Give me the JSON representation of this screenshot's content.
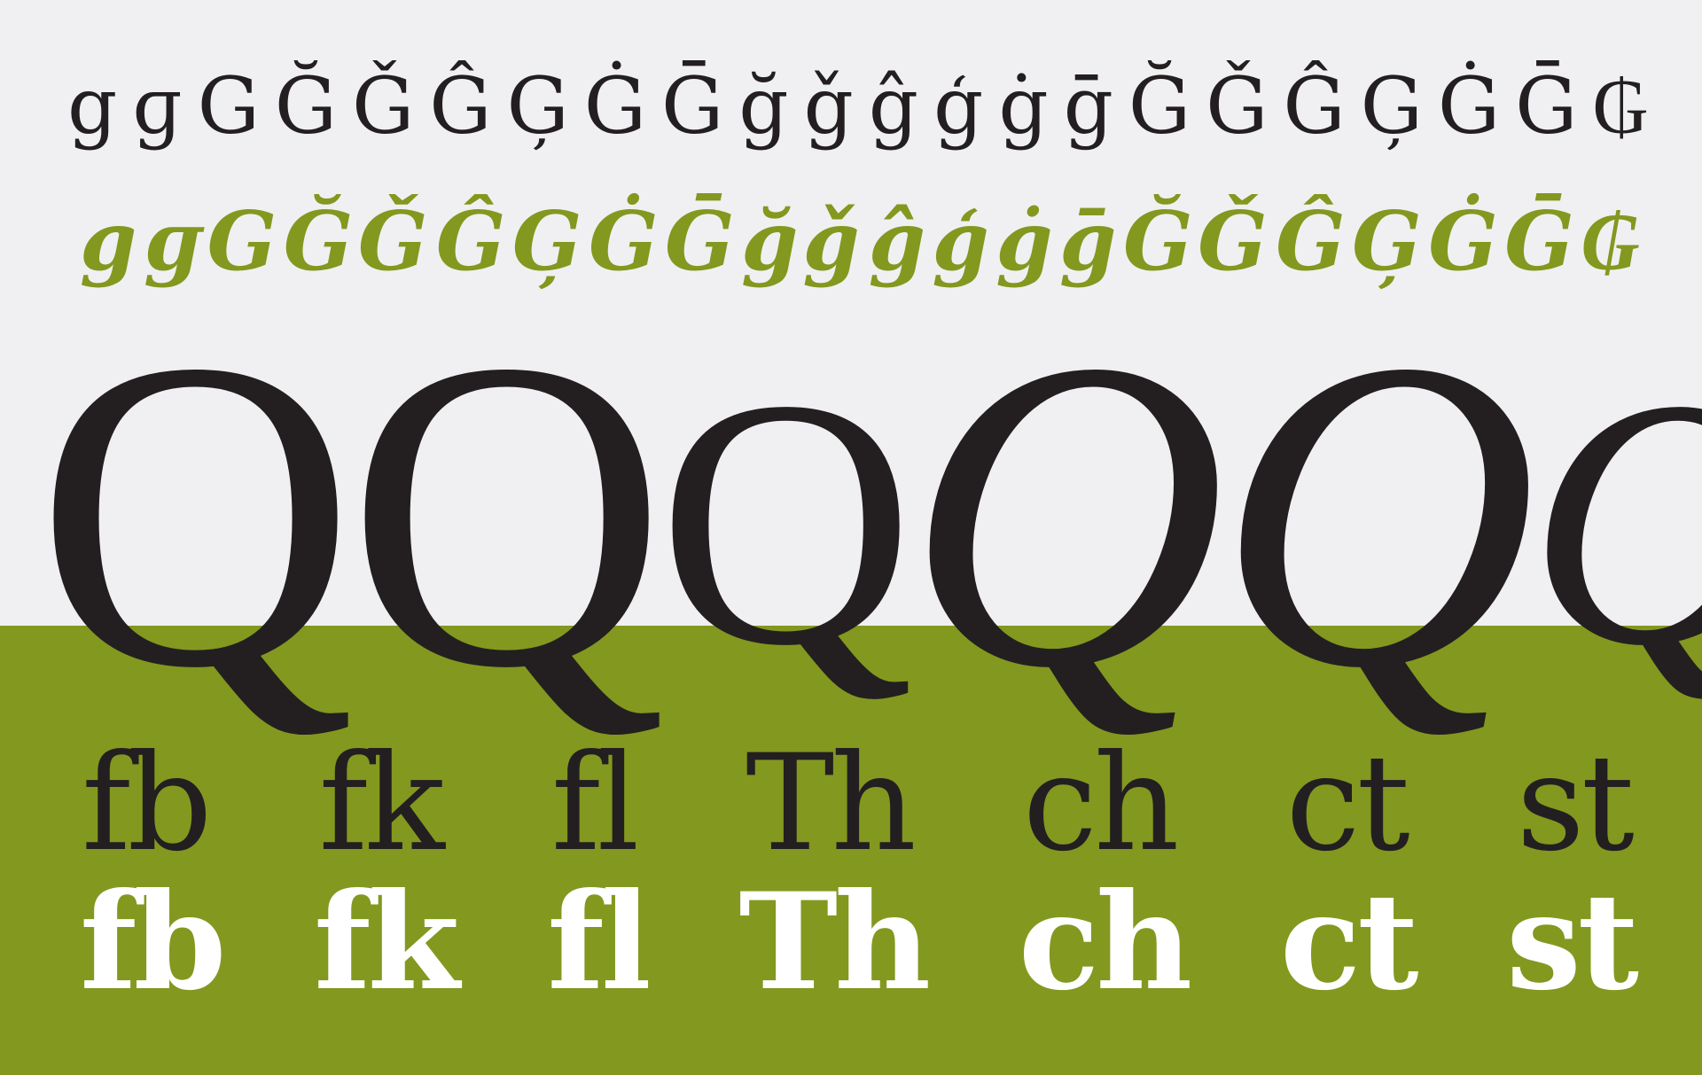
{
  "colors": {
    "background_top": "#f0f0f2",
    "background_bottom": "#83981f",
    "ink": "#231f20",
    "accent": "#83981f",
    "white": "#ffffff"
  },
  "regular_g_row": [
    "g",
    "ɡ",
    "G",
    "Ğ",
    "Ǧ",
    "Ĝ",
    "Ģ",
    "Ġ",
    "Ḡ",
    "ğ",
    "ǧ",
    "ĝ",
    "ģ",
    "ġ",
    "ḡ",
    "Ğ",
    "Ǧ",
    "Ĝ",
    "Ģ",
    "Ġ",
    "Ḡ",
    "₲"
  ],
  "italic_g_row": [
    "g",
    "ɡ",
    "G",
    "Ğ",
    "Ǧ",
    "Ĝ",
    "Ģ",
    "Ġ",
    "Ḡ",
    "ğ",
    "ǧ",
    "ĝ",
    "ģ",
    "ġ",
    "ḡ",
    "Ğ",
    "Ǧ",
    "Ĝ",
    "Ģ",
    "Ġ",
    "Ḡ",
    "₲"
  ],
  "q_row": [
    "Q",
    "Q",
    "Q",
    "Q",
    "Q",
    "Q"
  ],
  "ligatures_regular": [
    "fb",
    "fk",
    "fl",
    "Th",
    "ch",
    "ct",
    "st"
  ],
  "ligatures_bold": [
    "fb",
    "fk",
    "fl",
    "Th",
    "ch",
    "ct",
    "st"
  ]
}
